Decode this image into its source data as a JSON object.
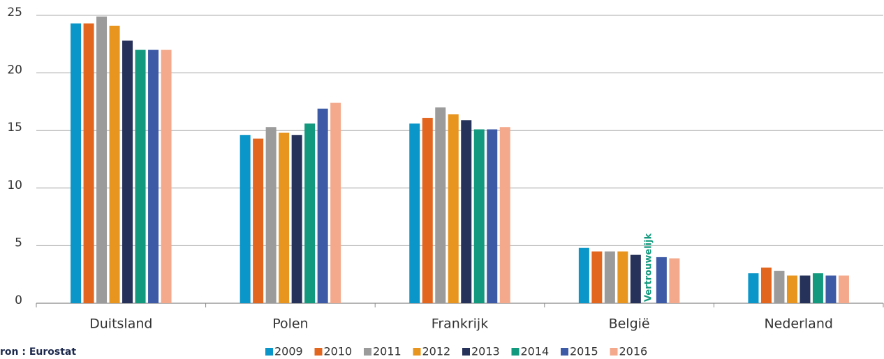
{
  "chart_data": {
    "type": "bar",
    "categories": [
      "Duitsland",
      "Polen",
      "Frankrijk",
      "België",
      "Nederland"
    ],
    "series": [
      {
        "name": "2009",
        "color": "#0a96c8",
        "values": [
          24.3,
          14.6,
          15.6,
          4.8,
          2.6
        ]
      },
      {
        "name": "2010",
        "color": "#e3661f",
        "values": [
          24.3,
          14.3,
          16.1,
          4.5,
          3.1
        ]
      },
      {
        "name": "2011",
        "color": "#9b9b9b",
        "values": [
          24.9,
          15.3,
          17.0,
          4.5,
          2.8
        ]
      },
      {
        "name": "2012",
        "color": "#e8951f",
        "values": [
          24.1,
          14.8,
          16.4,
          4.5,
          2.4
        ]
      },
      {
        "name": "2013",
        "color": "#27325a",
        "values": [
          22.8,
          14.6,
          15.9,
          4.2,
          2.4
        ]
      },
      {
        "name": "2014",
        "color": "#13997e",
        "values": [
          22.0,
          15.6,
          15.1,
          null,
          2.6
        ]
      },
      {
        "name": "2015",
        "color": "#3d5aa6",
        "values": [
          22.0,
          16.9,
          15.1,
          4.0,
          2.4
        ]
      },
      {
        "name": "2016",
        "color": "#f4a98c",
        "values": [
          22.0,
          17.4,
          15.3,
          3.9,
          2.4
        ]
      }
    ],
    "annotation": "Vertrouwelijk",
    "source": "ron : Eurostat",
    "ylim": [
      0,
      25
    ],
    "yticks": [
      0,
      5,
      10,
      15,
      20,
      25
    ],
    "grid": true
  }
}
